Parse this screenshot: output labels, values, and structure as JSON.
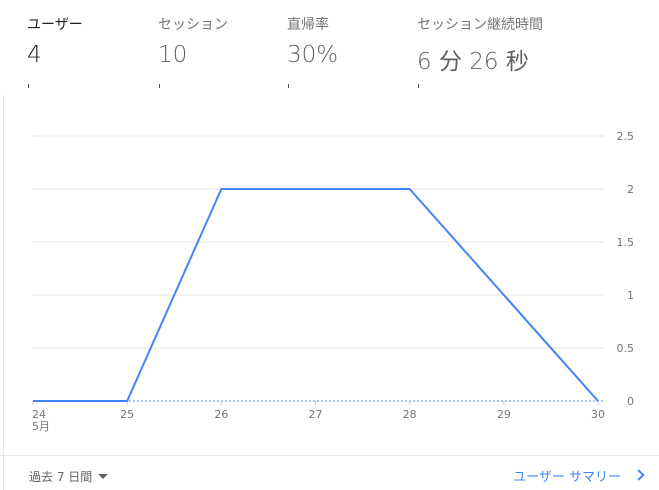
{
  "metrics": [
    {
      "label": "ユーザー",
      "value": "4"
    },
    {
      "label": "セッション",
      "value": "10"
    },
    {
      "label": "直帰率",
      "value": "30%"
    },
    {
      "label": "セッション継続時間",
      "value": "6 分 26 秒"
    }
  ],
  "chart_data": {
    "type": "line",
    "x": [
      "24",
      "25",
      "26",
      "27",
      "28",
      "29",
      "30"
    ],
    "x_sublabels": [
      "5月",
      "",
      "",
      "",
      "",
      "",
      ""
    ],
    "series": [
      {
        "values": [
          0,
          0,
          2,
          2,
          2,
          1,
          0
        ],
        "color": "#4285f4"
      }
    ],
    "y_ticks": [
      "0",
      "0.5",
      "1",
      "1.5",
      "2",
      "2.5"
    ],
    "ylim": [
      0,
      2.5
    ],
    "grid": true,
    "y_axis_side": "right",
    "baseline_style": "dotted"
  },
  "footer": {
    "range_label": "過去 7 日間",
    "summary_link": "ユーザー サマリー"
  },
  "colors": {
    "accent": "#4285f4",
    "grid": "#e6e6e6",
    "axis_text": "#757575"
  }
}
